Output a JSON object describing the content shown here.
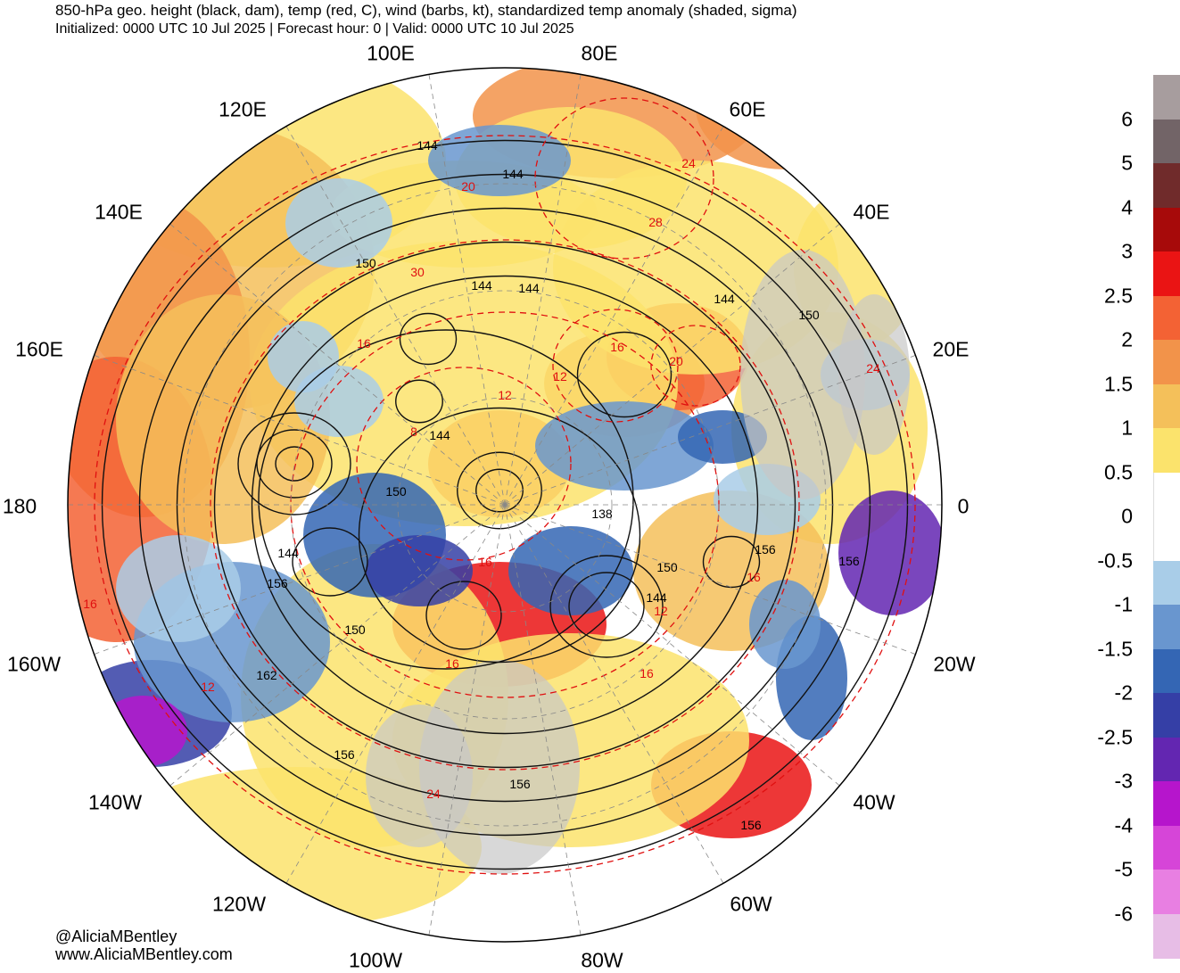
{
  "header": {
    "title": "850-hPa geo. height (black, dam), temp (red, C), wind (barbs, kt), standardized temp anomaly (shaded, sigma)",
    "subtitle": "Initialized: 0000 UTC 10 Jul 2025 | Forecast hour: 0 | Valid: 0000 UTC 10 Jul 2025"
  },
  "longitude_labels": [
    "100E",
    "80E",
    "120E",
    "60E",
    "140E",
    "40E",
    "160E",
    "20E",
    "180",
    "0",
    "160W",
    "20W",
    "140W",
    "40W",
    "120W",
    "60W",
    "100W",
    "80W"
  ],
  "height_contour_labels": [
    "144",
    "144",
    "150",
    "144",
    "144",
    "144",
    "150",
    "144",
    "150",
    "138",
    "156",
    "156",
    "150",
    "144",
    "144",
    "156",
    "150",
    "162",
    "156",
    "156",
    "156"
  ],
  "temp_contour_labels": [
    "24",
    "28",
    "20",
    "30",
    "24",
    "16",
    "16",
    "12",
    "12",
    "16",
    "20",
    "8",
    "16",
    "12",
    "16",
    "12",
    "16",
    "16",
    "24"
  ],
  "colorbar": {
    "labels": [
      "6",
      "5",
      "4",
      "3",
      "2.5",
      "2",
      "1.5",
      "1",
      "0.5",
      "0",
      "-0.5",
      "-1",
      "-1.5",
      "-2",
      "-2.5",
      "-3",
      "-4",
      "-5",
      "-6"
    ],
    "colors": [
      "#a79d9e",
      "#726467",
      "#702b2b",
      "#a70a0a",
      "#ea1414",
      "#f36234",
      "#f2934a",
      "#f4c05a",
      "#fbe36c",
      "#ffffff",
      "#ffffff",
      "#a9cde8",
      "#6996cf",
      "#3466b4",
      "#353fa6",
      "#6326b1",
      "#b615cc",
      "#d645d8",
      "#e87fe2",
      "#e7bde6"
    ]
  },
  "credits": {
    "handle": "@AliciaMBentley",
    "website": "www.AliciaMBentley.com"
  }
}
